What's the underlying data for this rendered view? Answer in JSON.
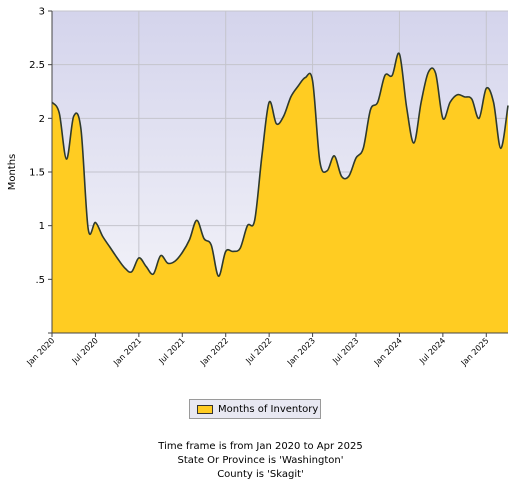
{
  "chart_data": {
    "type": "area",
    "ylabel": "Months",
    "ylim": [
      0,
      3
    ],
    "y_ticks": [
      {
        "value": 0.5,
        "label": ".5"
      },
      {
        "value": 1,
        "label": "1"
      },
      {
        "value": 1.5,
        "label": "1.5"
      },
      {
        "value": 2,
        "label": "2"
      },
      {
        "value": 2.5,
        "label": "2.5"
      },
      {
        "value": 3,
        "label": "3"
      }
    ],
    "x_tick_labels": [
      "Jan 2020",
      "Jul 2020",
      "Jan 2021",
      "Jul 2021",
      "Jan 2022",
      "Jul 2022",
      "Jan 2023",
      "Jul 2023",
      "Jan 2024",
      "Jul 2024",
      "Jan 2025"
    ],
    "grid": true,
    "legend_placement": "bottom",
    "fill_color": "#ffcc22",
    "line_color": "#2e3a2e",
    "plot_background": "#e6e6f4",
    "series": [
      {
        "name": "Months of Inventory",
        "x": [
          "2020-01",
          "2020-02",
          "2020-03",
          "2020-04",
          "2020-05",
          "2020-06",
          "2020-07",
          "2020-08",
          "2020-09",
          "2020-10",
          "2020-11",
          "2020-12",
          "2021-01",
          "2021-02",
          "2021-03",
          "2021-04",
          "2021-05",
          "2021-06",
          "2021-07",
          "2021-08",
          "2021-09",
          "2021-10",
          "2021-11",
          "2021-12",
          "2022-01",
          "2022-02",
          "2022-03",
          "2022-04",
          "2022-05",
          "2022-06",
          "2022-07",
          "2022-08",
          "2022-09",
          "2022-10",
          "2022-11",
          "2022-12",
          "2023-01",
          "2023-02",
          "2023-03",
          "2023-04",
          "2023-05",
          "2023-06",
          "2023-07",
          "2023-08",
          "2023-09",
          "2023-10",
          "2023-11",
          "2023-12",
          "2024-01",
          "2024-02",
          "2024-03",
          "2024-04",
          "2024-05",
          "2024-06",
          "2024-07",
          "2024-08",
          "2024-09",
          "2024-10",
          "2024-11",
          "2024-12",
          "2025-01",
          "2025-02",
          "2025-03",
          "2025-04"
        ],
        "values": [
          2.15,
          2.05,
          1.62,
          2.02,
          1.9,
          0.97,
          1.03,
          0.9,
          0.8,
          0.7,
          0.61,
          0.57,
          0.7,
          0.62,
          0.55,
          0.72,
          0.65,
          0.67,
          0.75,
          0.87,
          1.05,
          0.88,
          0.82,
          0.53,
          0.76,
          0.76,
          0.79,
          1.0,
          1.05,
          1.65,
          2.15,
          1.95,
          2.02,
          2.2,
          2.3,
          2.38,
          2.35,
          1.6,
          1.51,
          1.65,
          1.46,
          1.46,
          1.63,
          1.72,
          2.08,
          2.15,
          2.4,
          2.4,
          2.6,
          2.1,
          1.77,
          2.15,
          2.43,
          2.42,
          2.0,
          2.15,
          2.22,
          2.2,
          2.18,
          2.0,
          2.28,
          2.15,
          1.72,
          2.12
        ]
      }
    ]
  },
  "legend": {
    "label": "Months of Inventory"
  },
  "captions": [
    "Time frame is from Jan 2020 to Apr 2025",
    "State Or Province is 'Washington'",
    "County is 'Skagit'"
  ]
}
